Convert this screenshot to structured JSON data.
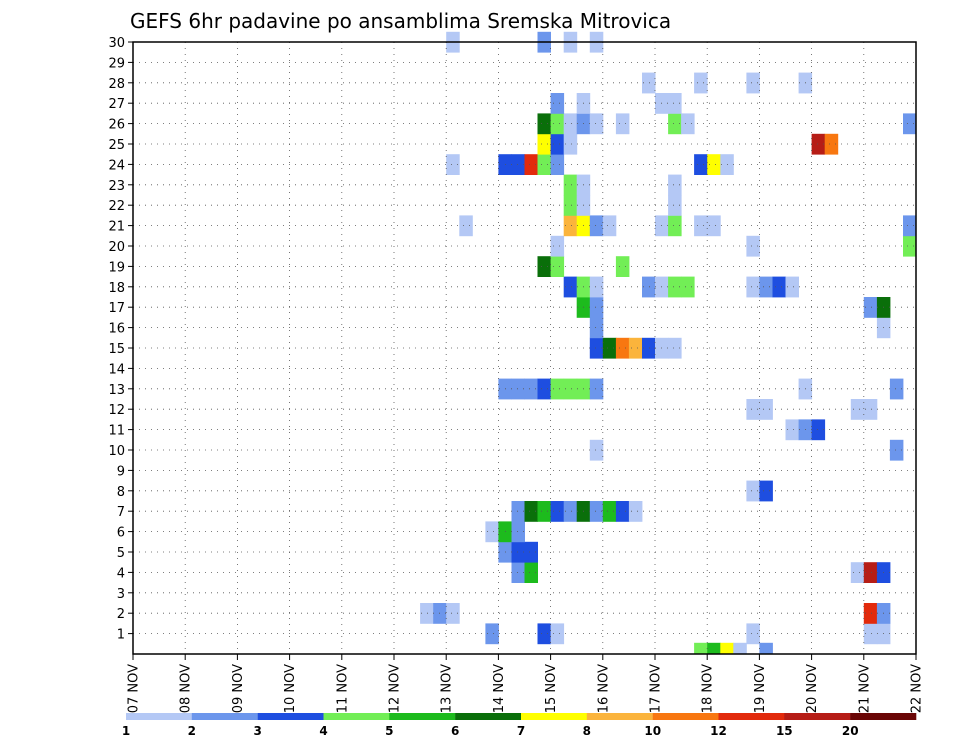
{
  "chart_data": {
    "type": "heatmap",
    "title": "GEFS 6hr padavine po ansamblima Sremska Mitrovica",
    "xlabel": "",
    "ylabel": "",
    "grid": true,
    "x_ticks": [
      "07 NOV",
      "08 NOV",
      "09 NOV",
      "10 NOV",
      "11 NOV",
      "12 NOV",
      "13 NOV",
      "14 NOV",
      "15 NOV",
      "16 NOV",
      "17 NOV",
      "18 NOV",
      "19 NOV",
      "20 NOV",
      "21 NOV",
      "22 NOV"
    ],
    "y_ticks": [
      1,
      2,
      3,
      4,
      5,
      6,
      7,
      8,
      9,
      10,
      11,
      12,
      13,
      14,
      15,
      16,
      17,
      18,
      19,
      20,
      21,
      22,
      23,
      24,
      25,
      26,
      27,
      28,
      29,
      30
    ],
    "x_range_days": [
      7,
      22
    ],
    "y_range": [
      0,
      30
    ],
    "legend": {
      "placement": "bottom",
      "labels": [
        "1",
        "2",
        "3",
        "4",
        "5",
        "6",
        "7",
        "8",
        "10",
        "12",
        "15",
        "20"
      ],
      "colors": [
        "#b4c8f5",
        "#6c96ec",
        "#1e4ee0",
        "#72ee56",
        "#1dbb1d",
        "#0a6f0a",
        "#ffff00",
        "#fbb43c",
        "#f87710",
        "#e22a0c",
        "#b61d16",
        "#6a0606"
      ]
    },
    "cells_note": "each cell: [day, member, colorIndex]",
    "cells": [
      [
        13.75,
        1,
        1
      ],
      [
        14.75,
        1,
        2
      ],
      [
        15.0,
        1,
        0
      ],
      [
        18.75,
        1,
        0
      ],
      [
        21.0,
        1,
        0
      ],
      [
        21.25,
        1,
        0
      ],
      [
        22.0,
        1,
        0
      ],
      [
        22.75,
        1,
        0
      ],
      [
        23.0,
        1,
        0
      ],
      [
        12.5,
        2,
        0
      ],
      [
        12.75,
        2,
        1
      ],
      [
        13.0,
        2,
        0
      ],
      [
        21.0,
        2,
        9
      ],
      [
        21.25,
        2,
        1
      ],
      [
        14.25,
        4,
        1
      ],
      [
        14.5,
        4,
        4
      ],
      [
        20.75,
        4,
        0
      ],
      [
        21.0,
        4,
        10
      ],
      [
        21.25,
        4,
        2
      ],
      [
        14.0,
        5,
        1
      ],
      [
        14.25,
        5,
        2
      ],
      [
        14.5,
        5,
        2
      ],
      [
        13.75,
        6,
        0
      ],
      [
        14.0,
        6,
        4
      ],
      [
        14.25,
        6,
        1
      ],
      [
        14.25,
        7,
        1
      ],
      [
        14.5,
        7,
        5
      ],
      [
        14.75,
        7,
        4
      ],
      [
        15.0,
        7,
        2
      ],
      [
        15.25,
        7,
        1
      ],
      [
        15.5,
        7,
        5
      ],
      [
        15.75,
        7,
        1
      ],
      [
        16.0,
        7,
        4
      ],
      [
        16.25,
        7,
        2
      ],
      [
        16.5,
        7,
        0
      ],
      [
        22.5,
        7,
        0
      ],
      [
        22.75,
        7,
        9
      ],
      [
        23.0,
        7,
        0
      ],
      [
        18.75,
        8,
        0
      ],
      [
        19.0,
        8,
        2
      ],
      [
        15.75,
        10,
        0
      ],
      [
        21.5,
        10,
        1
      ],
      [
        22.0,
        10,
        0
      ],
      [
        22.25,
        10,
        8
      ],
      [
        22.5,
        10,
        4
      ],
      [
        22.75,
        10,
        0
      ],
      [
        19.5,
        11,
        0
      ],
      [
        19.75,
        11,
        1
      ],
      [
        20.0,
        11,
        2
      ],
      [
        23.25,
        11,
        3
      ],
      [
        18.75,
        12,
        0
      ],
      [
        19.0,
        12,
        0
      ],
      [
        20.75,
        12,
        0
      ],
      [
        21.0,
        12,
        0
      ],
      [
        22.0,
        12,
        4
      ],
      [
        22.25,
        12,
        9
      ],
      [
        22.5,
        12,
        7
      ],
      [
        22.75,
        12,
        11
      ],
      [
        23.0,
        12,
        2
      ],
      [
        23.25,
        12,
        6
      ],
      [
        23.5,
        12,
        5
      ],
      [
        14.0,
        13,
        1
      ],
      [
        14.25,
        13,
        1
      ],
      [
        14.5,
        13,
        1
      ],
      [
        14.75,
        13,
        2
      ],
      [
        15.0,
        13,
        3
      ],
      [
        15.25,
        13,
        3
      ],
      [
        15.5,
        13,
        3
      ],
      [
        15.75,
        13,
        1
      ],
      [
        19.75,
        13,
        0
      ],
      [
        21.5,
        13,
        1
      ],
      [
        22.75,
        14,
        6
      ],
      [
        23.0,
        14,
        6
      ],
      [
        23.25,
        14,
        3
      ],
      [
        15.75,
        15,
        2
      ],
      [
        16.0,
        15,
        5
      ],
      [
        16.25,
        15,
        8
      ],
      [
        16.5,
        15,
        7
      ],
      [
        16.75,
        15,
        2
      ],
      [
        17.0,
        15,
        0
      ],
      [
        17.25,
        15,
        0
      ],
      [
        15.75,
        16,
        1
      ],
      [
        21.25,
        16,
        0
      ],
      [
        15.5,
        17,
        4
      ],
      [
        15.75,
        17,
        1
      ],
      [
        21.0,
        17,
        1
      ],
      [
        21.25,
        17,
        5
      ],
      [
        15.25,
        18,
        2
      ],
      [
        15.5,
        18,
        3
      ],
      [
        15.75,
        18,
        0
      ],
      [
        16.75,
        18,
        1
      ],
      [
        17.0,
        18,
        0
      ],
      [
        17.25,
        18,
        3
      ],
      [
        17.5,
        18,
        3
      ],
      [
        18.75,
        18,
        0
      ],
      [
        19.0,
        18,
        1
      ],
      [
        19.25,
        18,
        2
      ],
      [
        19.5,
        18,
        0
      ],
      [
        14.75,
        19,
        5
      ],
      [
        15.0,
        19,
        3
      ],
      [
        16.25,
        19,
        3
      ],
      [
        15.0,
        20,
        0
      ],
      [
        18.75,
        20,
        0
      ],
      [
        21.75,
        20,
        3
      ],
      [
        22.0,
        20,
        1
      ],
      [
        13.25,
        21,
        0
      ],
      [
        15.25,
        21,
        7
      ],
      [
        15.5,
        21,
        6
      ],
      [
        15.75,
        21,
        1
      ],
      [
        16.0,
        21,
        0
      ],
      [
        17.0,
        21,
        0
      ],
      [
        17.25,
        21,
        3
      ],
      [
        17.75,
        21,
        0
      ],
      [
        18.0,
        21,
        0
      ],
      [
        21.75,
        21,
        1
      ],
      [
        23.25,
        21,
        0
      ],
      [
        23.5,
        21,
        2
      ],
      [
        15.25,
        22,
        3
      ],
      [
        15.5,
        22,
        0
      ],
      [
        17.25,
        22,
        0
      ],
      [
        15.25,
        23,
        3
      ],
      [
        15.5,
        23,
        0
      ],
      [
        17.25,
        23,
        0
      ],
      [
        23.0,
        23,
        2
      ],
      [
        23.25,
        23,
        1
      ],
      [
        13.0,
        24,
        0
      ],
      [
        14.0,
        24,
        2
      ],
      [
        14.25,
        24,
        2
      ],
      [
        14.5,
        24,
        9
      ],
      [
        14.75,
        24,
        3
      ],
      [
        15.0,
        24,
        1
      ],
      [
        17.75,
        24,
        2
      ],
      [
        18.0,
        24,
        6
      ],
      [
        18.25,
        24,
        0
      ],
      [
        23.25,
        24,
        3
      ],
      [
        14.75,
        25,
        6
      ],
      [
        15.0,
        25,
        2
      ],
      [
        15.25,
        25,
        0
      ],
      [
        20.0,
        25,
        10
      ],
      [
        20.25,
        25,
        8
      ],
      [
        14.75,
        26,
        5
      ],
      [
        15.0,
        26,
        3
      ],
      [
        15.25,
        26,
        0
      ],
      [
        15.5,
        26,
        1
      ],
      [
        15.75,
        26,
        0
      ],
      [
        16.25,
        26,
        0
      ],
      [
        17.25,
        26,
        3
      ],
      [
        17.5,
        26,
        0
      ],
      [
        21.75,
        26,
        1
      ],
      [
        22.0,
        26,
        0
      ],
      [
        22.25,
        26,
        0
      ],
      [
        15.0,
        27,
        1
      ],
      [
        15.5,
        27,
        0
      ],
      [
        17.0,
        27,
        0
      ],
      [
        17.25,
        27,
        0
      ],
      [
        23.5,
        27,
        0
      ],
      [
        16.75,
        28,
        0
      ],
      [
        17.75,
        28,
        0
      ],
      [
        18.75,
        28,
        0
      ],
      [
        19.75,
        28,
        0
      ],
      [
        22.25,
        28,
        0
      ],
      [
        22.0,
        29,
        2
      ],
      [
        13.0,
        30,
        0
      ],
      [
        14.75,
        30,
        1
      ],
      [
        15.25,
        30,
        0
      ],
      [
        15.75,
        30,
        0
      ]
    ],
    "cells_row0": [
      [
        17.75,
        3
      ],
      [
        18.0,
        4
      ],
      [
        18.25,
        6
      ],
      [
        18.5,
        0
      ],
      [
        19.0,
        1
      ]
    ]
  }
}
